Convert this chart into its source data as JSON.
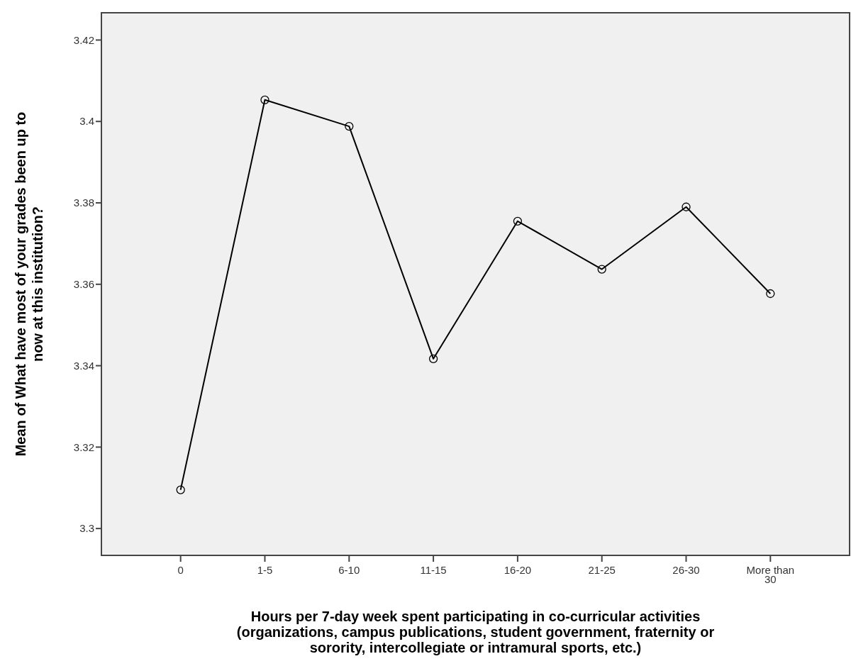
{
  "chart_data": {
    "type": "line",
    "xlabel": "Hours per 7-day week spent participating in co-curricular activities (organizations, campus publications, student government, fraternity or sorority, intercollegiate or intramural sports, etc.)",
    "ylabel": "Mean of What have most of your grades been up to now at this institution?",
    "categories": [
      "0",
      "1-5",
      "6-10",
      "11-15",
      "16-20",
      "21-25",
      "26-30",
      "More than 30"
    ],
    "series": [
      {
        "color": "#000000",
        "values": [
          3.3095,
          3.4053,
          3.3988,
          3.3417,
          3.3755,
          3.3637,
          3.379,
          3.3577
        ]
      }
    ],
    "ylim": [
      3.2934,
      3.4267
    ],
    "yticks": [
      3.3,
      3.32,
      3.34,
      3.36,
      3.38,
      3.4,
      3.42
    ],
    "marker": "circle",
    "line_style": "solid",
    "grid": false
  }
}
